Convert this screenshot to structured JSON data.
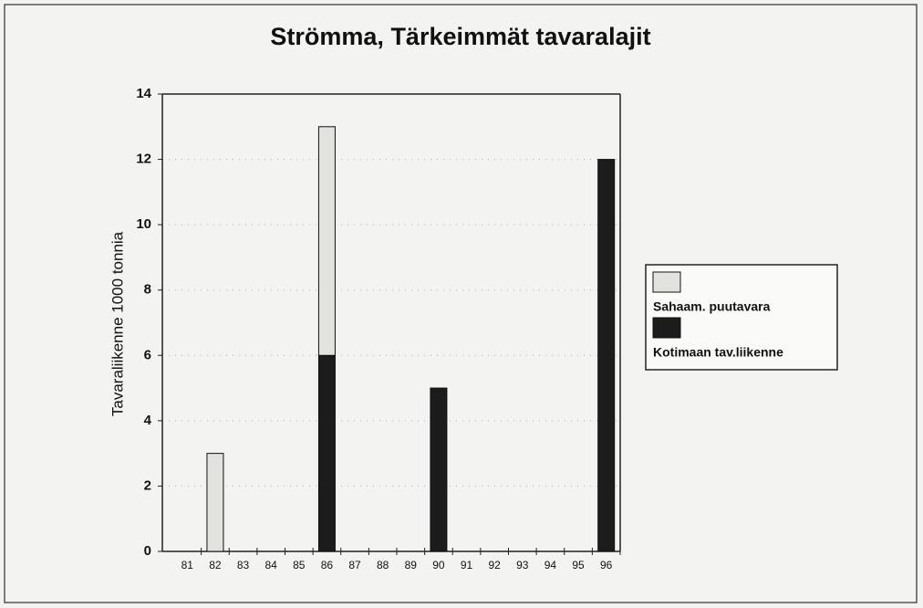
{
  "chart_data": {
    "type": "stacked_bar",
    "title": "Strömma, Tärkeimmät tavaralajit",
    "y_label": "Tavaraliikenne 1000 tonnia",
    "categories": [
      "81",
      "82",
      "83",
      "84",
      "85",
      "86",
      "87",
      "88",
      "89",
      "90",
      "91",
      "92",
      "93",
      "94",
      "95",
      "96"
    ],
    "series": [
      {
        "name": "Kotimaan tav.liikenne",
        "color": "#1c1c1c",
        "values": [
          0,
          0,
          0,
          0,
          0,
          6,
          0,
          0,
          0,
          5,
          0,
          0,
          0,
          0,
          0,
          12
        ]
      },
      {
        "name": "Sahaam. puutavara",
        "color": "#e2e2df",
        "values": [
          0,
          3,
          0,
          0,
          0,
          7,
          0,
          0,
          0,
          0,
          0,
          0,
          0,
          0,
          0,
          0
        ]
      }
    ],
    "ylim": [
      0,
      14
    ],
    "yticks": [
      0,
      2,
      4,
      6,
      8,
      10,
      12,
      14
    ],
    "grid": true,
    "legend": "right"
  }
}
